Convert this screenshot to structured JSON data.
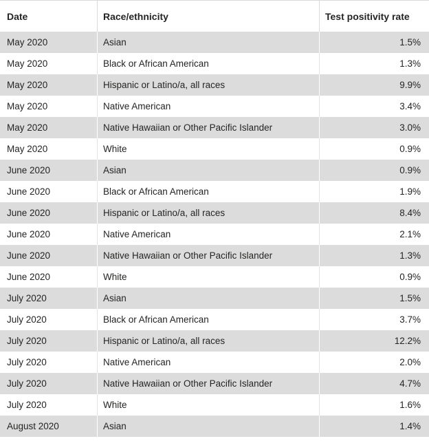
{
  "chart_data": {
    "type": "table",
    "columns": [
      {
        "key": "date",
        "label": "Date"
      },
      {
        "key": "race",
        "label": "Race/ethnicity"
      },
      {
        "key": "rate",
        "label": "Test positivity rate"
      }
    ],
    "rows": [
      [
        "May 2020",
        "Asian",
        "1.5%"
      ],
      [
        "May 2020",
        "Black or African American",
        "1.3%"
      ],
      [
        "May 2020",
        "Hispanic or Latino/a, all races",
        "9.9%"
      ],
      [
        "May 2020",
        "Native American",
        "3.4%"
      ],
      [
        "May 2020",
        "Native Hawaiian or Other Pacific Islander",
        "3.0%"
      ],
      [
        "May 2020",
        "White",
        "0.9%"
      ],
      [
        "June 2020",
        "Asian",
        "0.9%"
      ],
      [
        "June 2020",
        "Black or African American",
        "1.9%"
      ],
      [
        "June 2020",
        "Hispanic or Latino/a, all races",
        "8.4%"
      ],
      [
        "June 2020",
        "Native American",
        "2.1%"
      ],
      [
        "June 2020",
        "Native Hawaiian or Other Pacific Islander",
        "1.3%"
      ],
      [
        "June 2020",
        "White",
        "0.9%"
      ],
      [
        "July 2020",
        "Asian",
        "1.5%"
      ],
      [
        "July 2020",
        "Black or African American",
        "3.7%"
      ],
      [
        "July 2020",
        "Hispanic or Latino/a, all races",
        "12.2%"
      ],
      [
        "July 2020",
        "Native American",
        "2.0%"
      ],
      [
        "July 2020",
        "Native Hawaiian or Other Pacific Islander",
        "4.7%"
      ],
      [
        "July 2020",
        "White",
        "1.6%"
      ],
      [
        "August 2020",
        "Asian",
        "1.4%"
      ]
    ]
  },
  "colors": {
    "band": "#dcdcdc",
    "text": "#252423",
    "row_separator": "#e3e3e3",
    "header_separator": "#d9d9d9",
    "top_border": "#d9d9d9"
  }
}
